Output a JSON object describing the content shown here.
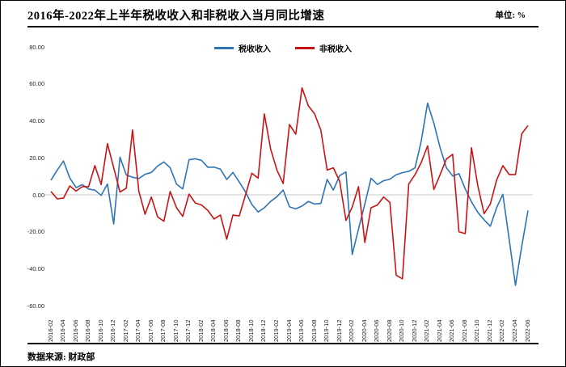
{
  "header": {
    "title": "2016年-2022年上半年税收收入和非税收入当月同比增速",
    "unit": "单位: %"
  },
  "footer": {
    "source": "数据来源: 财政部"
  },
  "chart_data": {
    "type": "line",
    "title": "2016年-2022年上半年税收收入和非税收入当月同比增速",
    "ylabel": "%",
    "ylim": [
      -60,
      80
    ],
    "grid": "zero-line-only",
    "legend_position": "top-center",
    "ytick_labels": [
      "80.00",
      "60.00",
      "40.00",
      "20.00",
      "0.00",
      "-20.00",
      "-40.00",
      "-60.00"
    ],
    "ytick_values": [
      80,
      60,
      40,
      20,
      0,
      -20,
      -40,
      -60
    ],
    "x_tick_labels": [
      "2016-02",
      "2016-04",
      "2016-06",
      "2016-08",
      "2016-10",
      "2016-12",
      "2017-02",
      "2017-04",
      "2017-06",
      "2017-08",
      "2017-10",
      "2017-12",
      "2018-02",
      "2018-04",
      "2018-06",
      "2018-08",
      "2018-10",
      "2018-12",
      "2019-02",
      "2019-04",
      "2019-06",
      "2019-08",
      "2019-10",
      "2019-12",
      "2020-02",
      "2020-04",
      "2020-06",
      "2020-08",
      "2020-10",
      "2020-12",
      "2021-02",
      "2021-04",
      "2021-06",
      "2021-08",
      "2021-10",
      "2021-12",
      "2022-02",
      "2022-04",
      "2022-06"
    ],
    "months": [
      "2016-02",
      "2016-03",
      "2016-04",
      "2016-05",
      "2016-06",
      "2016-07",
      "2016-08",
      "2016-09",
      "2016-10",
      "2016-11",
      "2016-12",
      "2017-01",
      "2017-02",
      "2017-03",
      "2017-04",
      "2017-05",
      "2017-06",
      "2017-07",
      "2017-08",
      "2017-09",
      "2017-10",
      "2017-11",
      "2017-12",
      "2018-01",
      "2018-02",
      "2018-03",
      "2018-04",
      "2018-05",
      "2018-06",
      "2018-07",
      "2018-08",
      "2018-09",
      "2018-10",
      "2018-11",
      "2018-12",
      "2019-01",
      "2019-02",
      "2019-03",
      "2019-04",
      "2019-05",
      "2019-06",
      "2019-07",
      "2019-08",
      "2019-09",
      "2019-10",
      "2019-11",
      "2019-12",
      "2020-01",
      "2020-02",
      "2020-03",
      "2020-04",
      "2020-05",
      "2020-06",
      "2020-07",
      "2020-08",
      "2020-09",
      "2020-10",
      "2020-11",
      "2020-12",
      "2021-01",
      "2021-02",
      "2021-03",
      "2021-04",
      "2021-05",
      "2021-06",
      "2021-07",
      "2021-08",
      "2021-09",
      "2021-10",
      "2021-11",
      "2021-12",
      "2022-01",
      "2022-02",
      "2022-03",
      "2022-04",
      "2022-05",
      "2022-06"
    ],
    "series": [
      {
        "name": "税收收入",
        "color": "#2E74B5",
        "values": [
          7.9,
          13.4,
          18.3,
          9.1,
          3.9,
          5.5,
          3.1,
          2.6,
          -0.3,
          5.8,
          -15.8,
          20.4,
          10.7,
          9.5,
          8.8,
          11.1,
          12.1,
          15.6,
          17.8,
          14.6,
          5.8,
          3.2,
          19.0,
          19.5,
          18.6,
          14.9,
          15.0,
          13.9,
          8.3,
          12.1,
          6.9,
          1.5,
          -5.1,
          -9.3,
          -7.0,
          -3.6,
          -1.0,
          2.6,
          -6.5,
          -7.6,
          -6.1,
          -3.6,
          -5.0,
          -4.7,
          8.3,
          2.6,
          10.4,
          12.4,
          -32.3,
          -18.5,
          -5.0,
          9.0,
          5.6,
          7.6,
          8.5,
          10.9,
          12.0,
          12.7,
          14.6,
          29.2,
          49.6,
          38.7,
          25.5,
          14.6,
          10.2,
          11.5,
          3.2,
          -3.8,
          -9.5,
          -13.5,
          -17.0,
          -7.0,
          0.3,
          -24.0,
          -49.0,
          -28.0,
          -8.5
        ]
      },
      {
        "name": "非税收入",
        "color": "#C81414",
        "values": [
          1.8,
          -2.2,
          -1.8,
          4.8,
          2.0,
          4.4,
          4.4,
          15.8,
          5.5,
          27.7,
          14.6,
          1.5,
          3.6,
          35.1,
          2.0,
          -10.5,
          -1.2,
          -12.0,
          -14.3,
          1.8,
          -7.0,
          -11.7,
          0.4,
          -4.4,
          -5.5,
          -8.5,
          -13.1,
          -10.9,
          -24.0,
          -11.0,
          -11.4,
          0.0,
          11.7,
          9.0,
          43.8,
          24.8,
          13.4,
          6.1,
          38.0,
          32.8,
          57.9,
          48.2,
          43.8,
          35.0,
          13.4,
          14.6,
          7.3,
          -13.9,
          -6.6,
          4.4,
          -25.8,
          -7.0,
          -5.5,
          -1.2,
          -4.1,
          -43.5,
          -45.5,
          5.8,
          10.9,
          17.5,
          26.5,
          2.9,
          10.9,
          19.4,
          21.9,
          -20.0,
          -21.0,
          25.5,
          5.0,
          -10.2,
          -5.0,
          8.0,
          15.8,
          11.0,
          11.0,
          33.0,
          37.5
        ]
      }
    ]
  }
}
